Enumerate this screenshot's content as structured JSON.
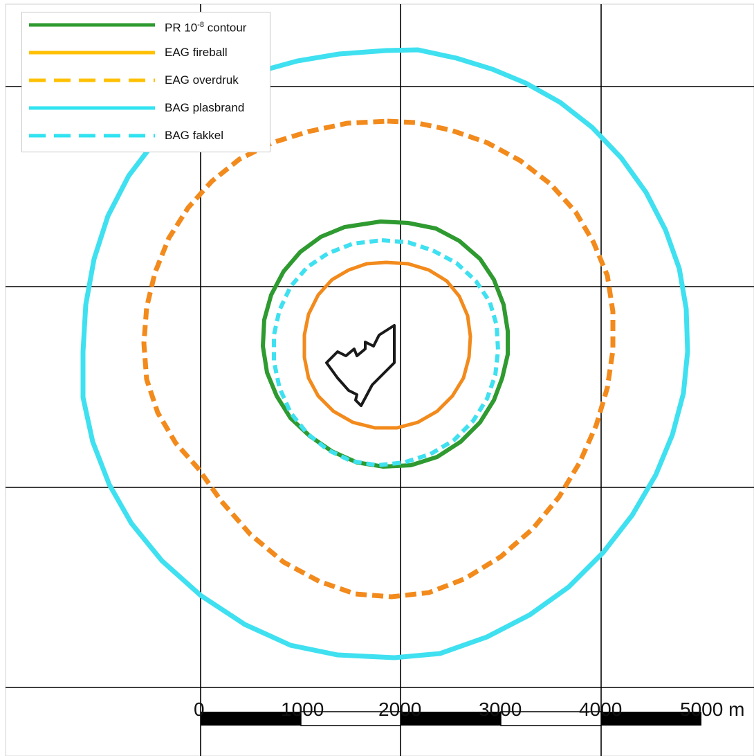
{
  "legend": {
    "items": [
      {
        "label_pre": "PR 10",
        "label_sup": "-8",
        "label_post": " contour",
        "color": "#2e9a30",
        "dashed": false,
        "icon": "solid-line"
      },
      {
        "label": "EAG fireball",
        "color": "#ffc000",
        "dashed": false,
        "icon": "solid-line"
      },
      {
        "label": "EAG overdruk",
        "color": "#ffc000",
        "dashed": true,
        "icon": "dashed-line"
      },
      {
        "label": "BAG plasbrand",
        "color": "#31e3f0",
        "dashed": false,
        "icon": "solid-line"
      },
      {
        "label": "BAG fakkel",
        "color": "#31e3f0",
        "dashed": true,
        "icon": "dashed-line"
      }
    ]
  },
  "map_colors": {
    "pr_contour": "#2e9a30",
    "eag_fireball": "#f28a1c",
    "eag_overdruk": "#f28a1c",
    "bag_plasbrand": "#3fe0f0",
    "bag_fakkel": "#3fe0f0",
    "site_outline": "#1a1a1a",
    "grid": "#000000"
  },
  "scale_bar": {
    "labels": [
      "0",
      "1000",
      "2000",
      "3000",
      "4000",
      "5000 m"
    ],
    "max_m": 5000,
    "segment_m": 1000
  }
}
